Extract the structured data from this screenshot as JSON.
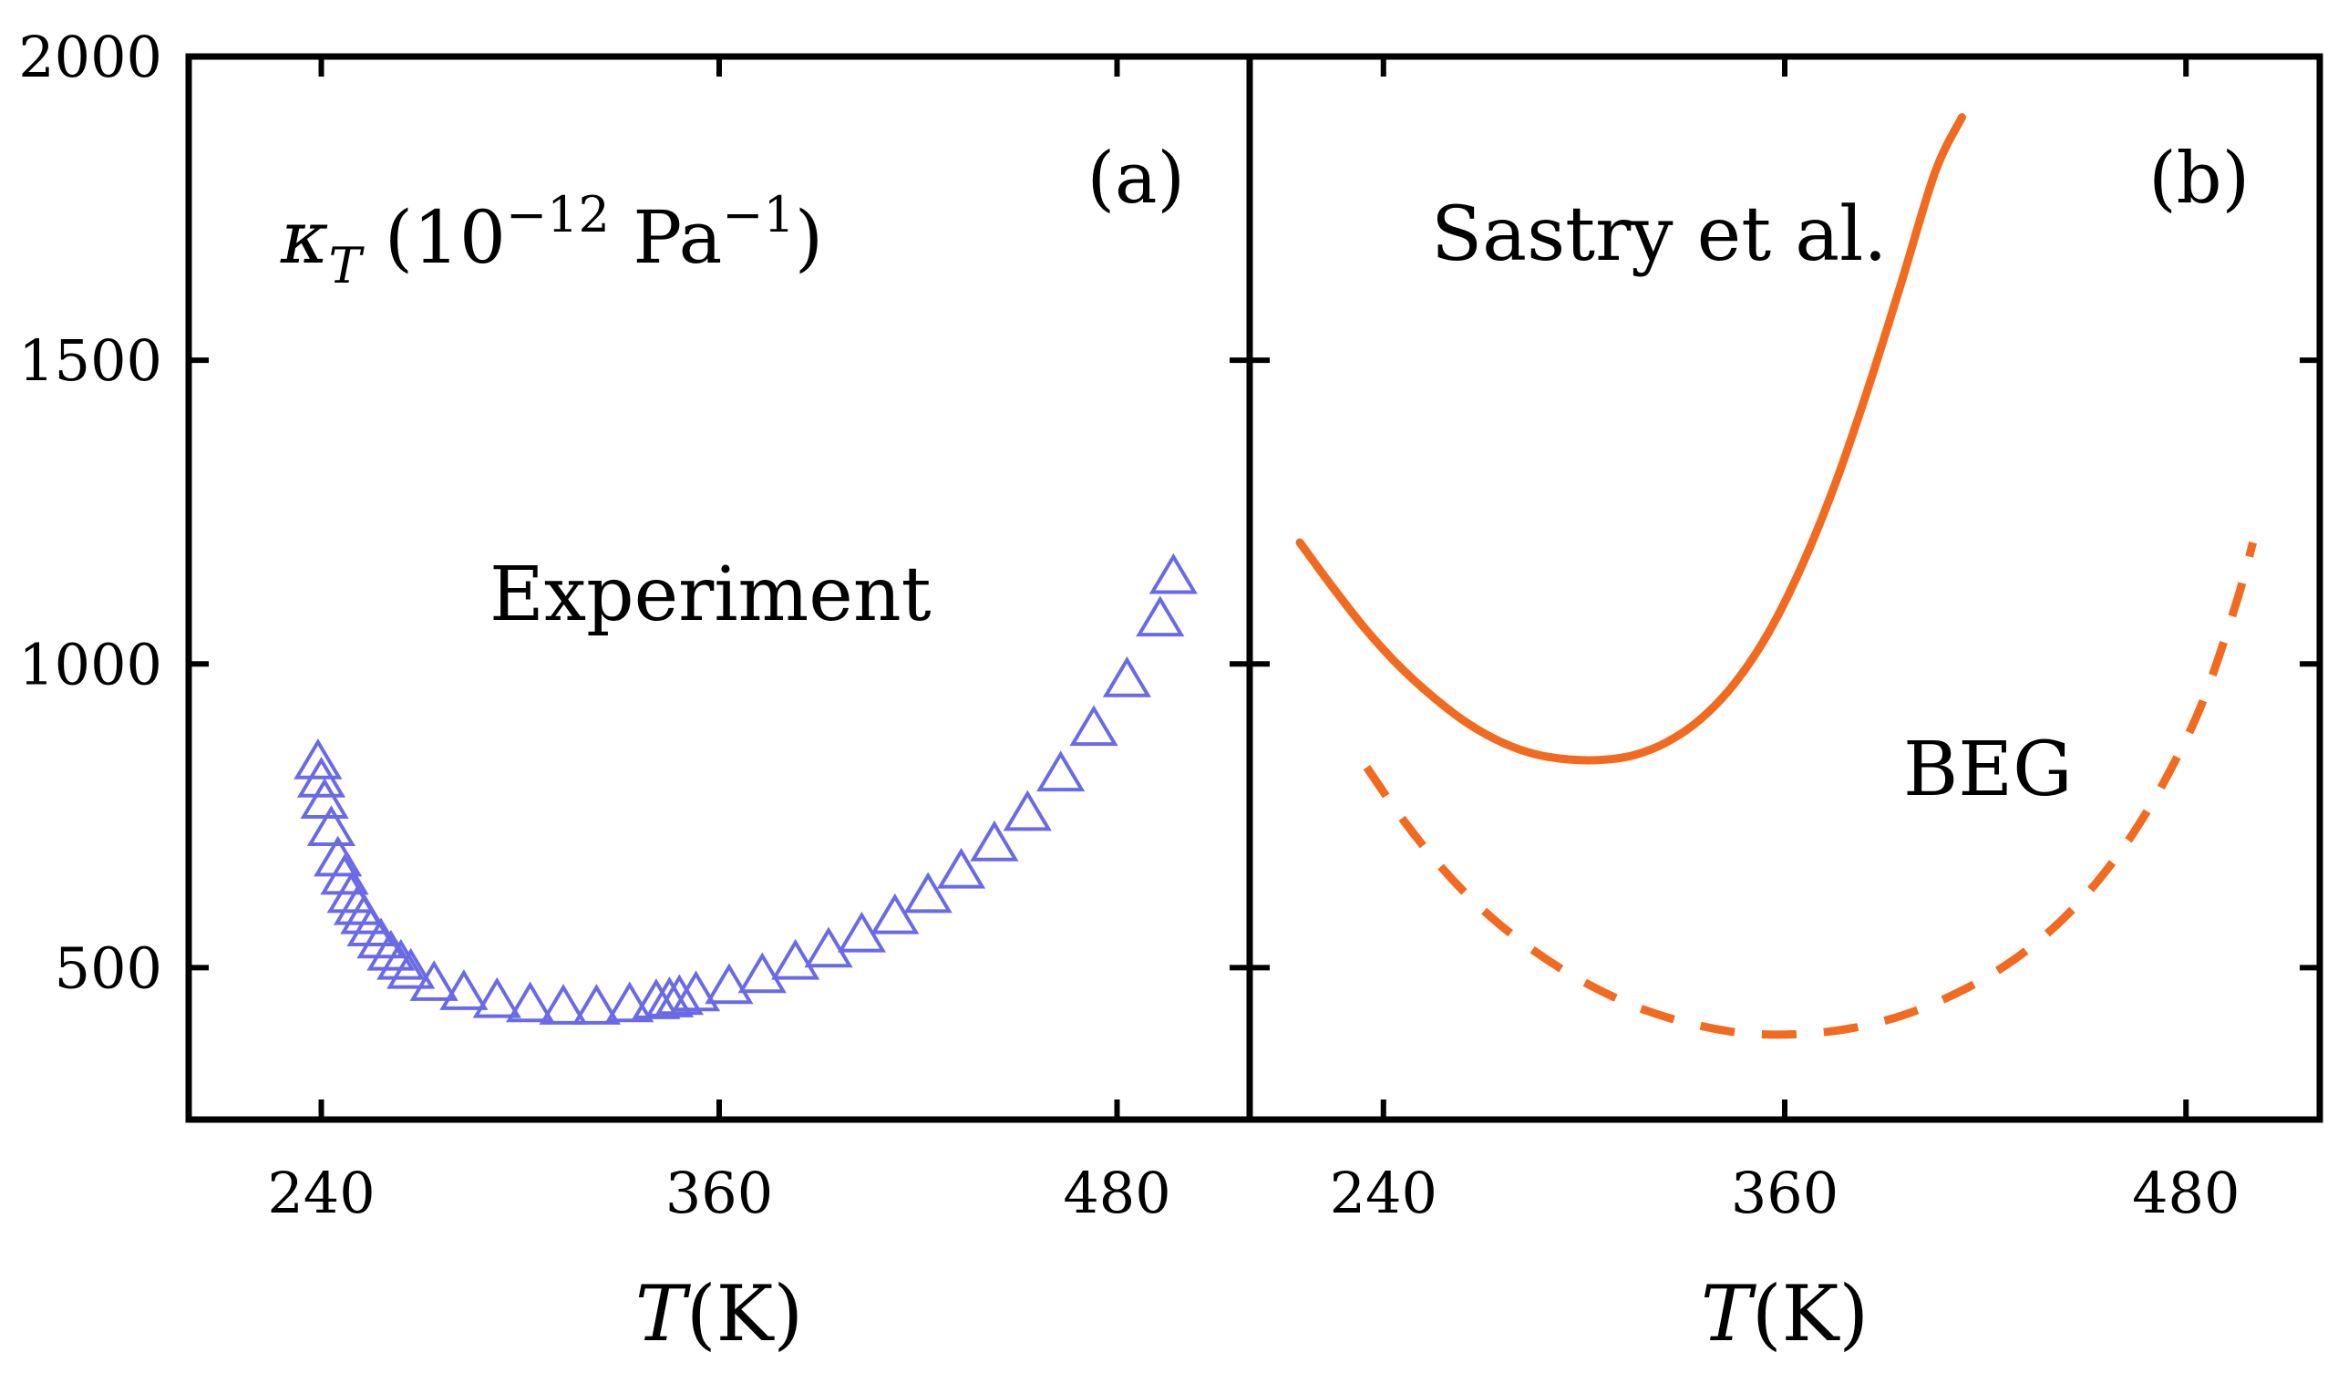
{
  "chart_data": [
    {
      "panel": "(a)",
      "type": "scatter",
      "ylabel": "κT (10−12 Pa−1)",
      "ylabel_parts": {
        "symbol": "κ",
        "subscript": "T",
        "open": " (10",
        "exponent": "−12",
        "unit": " Pa",
        "unit_exponent": "−1",
        "close": ")"
      },
      "xlabel": "T(K)",
      "xlabel_parts": {
        "symbol": "T",
        "unit": "(K)"
      },
      "xlim": [
        200,
        520
      ],
      "ylim": [
        250,
        2000
      ],
      "xticks": [
        240,
        360,
        480
      ],
      "xtick_labels": [
        "240",
        "360",
        "480"
      ],
      "yticks": [
        500,
        1000,
        1500,
        2000
      ],
      "ytick_labels": [
        "500",
        "1000",
        "1500",
        "2000"
      ],
      "annotation": "Experiment",
      "series": [
        {
          "name": "Experiment",
          "marker": "open-triangle",
          "color": "#6a6ae8",
          "x": [
            239,
            240,
            241,
            243,
            245,
            247,
            249,
            251,
            253,
            255,
            258,
            261,
            264,
            267,
            274,
            283,
            293,
            303,
            313,
            323,
            333,
            341,
            345,
            348,
            353,
            363,
            373,
            383,
            393,
            403,
            413,
            423,
            433,
            443,
            453,
            463,
            473,
            483,
            493,
            497
          ],
          "y": [
            840,
            810,
            775,
            730,
            680,
            650,
            620,
            600,
            585,
            565,
            545,
            525,
            510,
            495,
            475,
            460,
            447,
            440,
            436,
            436,
            440,
            445,
            448,
            452,
            458,
            470,
            488,
            510,
            530,
            555,
            585,
            620,
            660,
            705,
            755,
            820,
            895,
            975,
            1075,
            1145
          ]
        }
      ]
    },
    {
      "panel": "(b)",
      "type": "line",
      "xlabel": "T(K)",
      "xlabel_parts": {
        "symbol": "T",
        "unit": "(K)"
      },
      "xlim": [
        200,
        520
      ],
      "ylim": [
        250,
        2000
      ],
      "xticks": [
        240,
        360,
        480
      ],
      "xtick_labels": [
        "240",
        "360",
        "480"
      ],
      "annotations": [
        "Sastry et al.",
        "BEG"
      ],
      "series": [
        {
          "name": "Sastry et al.",
          "style": "solid",
          "color": "#f26a1f",
          "x": [
            215,
            225,
            235,
            245,
            255,
            265,
            275,
            285,
            295,
            305,
            315,
            325,
            335,
            345,
            355,
            365,
            375,
            385,
            395,
            405,
            413
          ],
          "y": [
            1200,
            1125,
            1055,
            995,
            945,
            903,
            872,
            852,
            843,
            842,
            850,
            872,
            910,
            968,
            1050,
            1160,
            1295,
            1455,
            1630,
            1810,
            1900
          ]
        },
        {
          "name": "BEG",
          "style": "dashed",
          "color": "#f26a1f",
          "x": [
            235,
            245,
            255,
            265,
            275,
            285,
            295,
            305,
            315,
            325,
            335,
            345,
            355,
            365,
            375,
            385,
            395,
            405,
            415,
            425,
            435,
            445,
            455,
            465,
            475,
            485,
            495,
            500
          ],
          "y": [
            830,
            750,
            680,
            620,
            570,
            528,
            492,
            462,
            437,
            418,
            404,
            394,
            390,
            391,
            396,
            406,
            421,
            442,
            468,
            500,
            540,
            590,
            652,
            728,
            822,
            938,
            1100,
            1200
          ]
        }
      ]
    }
  ]
}
